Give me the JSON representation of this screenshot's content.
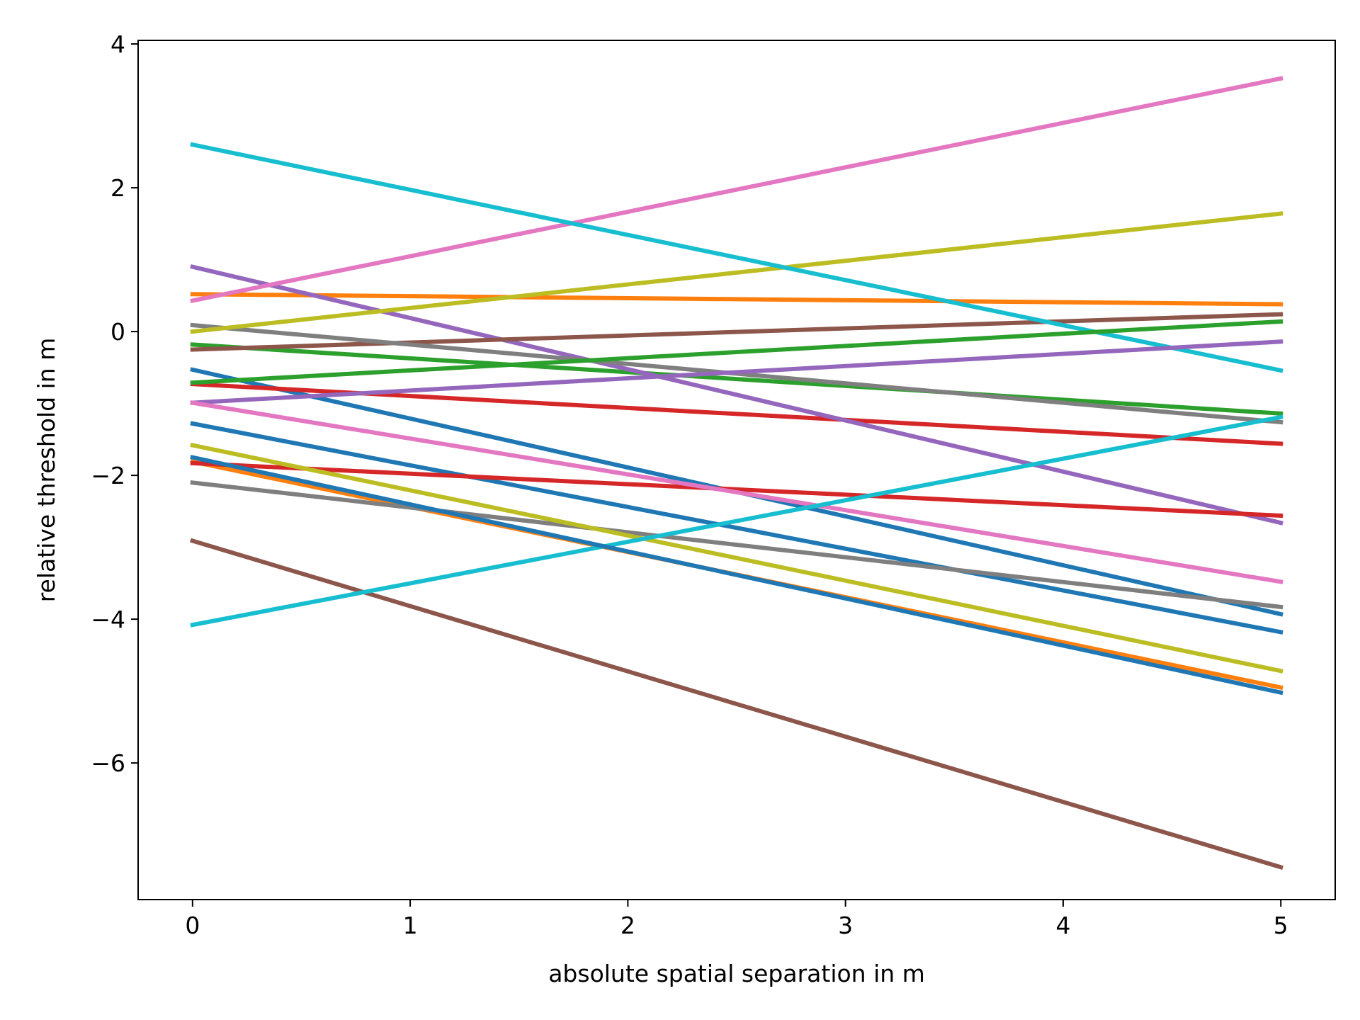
{
  "chart_data": {
    "type": "line",
    "title": "",
    "xlabel": "absolute spatial separation in m",
    "ylabel": "relative threshold in m",
    "xlim": [
      -0.25,
      5.25
    ],
    "ylim": [
      -7.9,
      4.05
    ],
    "xticks": [
      0,
      1,
      2,
      3,
      4,
      5
    ],
    "xtick_labels": [
      "0",
      "1",
      "2",
      "3",
      "4",
      "5"
    ],
    "yticks": [
      -6,
      -4,
      -2,
      0,
      2,
      4
    ],
    "ytick_labels": [
      "−6",
      "−4",
      "−2",
      "0",
      "2",
      "4"
    ],
    "grid": false,
    "legend": "none",
    "x": [
      0,
      5
    ],
    "series": [
      {
        "color": "#1f77b4",
        "values": [
          -0.53,
          -3.93
        ]
      },
      {
        "color": "#ff7f0e",
        "values": [
          0.52,
          0.38
        ]
      },
      {
        "color": "#2ca02c",
        "values": [
          -0.18,
          -1.14
        ]
      },
      {
        "color": "#d62728",
        "values": [
          -0.73,
          -1.56
        ]
      },
      {
        "color": "#9467bd",
        "values": [
          0.9,
          -2.66
        ]
      },
      {
        "color": "#8c564b",
        "values": [
          -0.25,
          0.24
        ]
      },
      {
        "color": "#e377c2",
        "values": [
          0.43,
          3.52
        ]
      },
      {
        "color": "#7f7f7f",
        "values": [
          0.09,
          -1.26
        ]
      },
      {
        "color": "#bcbd22",
        "values": [
          0.0,
          1.64
        ]
      },
      {
        "color": "#17becf",
        "values": [
          2.6,
          -0.54
        ]
      },
      {
        "color": "#1f77b4",
        "values": [
          -1.28,
          -4.18
        ]
      },
      {
        "color": "#ff7f0e",
        "values": [
          -1.81,
          -4.95
        ]
      },
      {
        "color": "#2ca02c",
        "values": [
          -0.71,
          0.14
        ]
      },
      {
        "color": "#d62728",
        "values": [
          -1.83,
          -2.56
        ]
      },
      {
        "color": "#9467bd",
        "values": [
          -0.99,
          -0.14
        ]
      },
      {
        "color": "#8c564b",
        "values": [
          -2.91,
          -7.45
        ]
      },
      {
        "color": "#e377c2",
        "values": [
          -0.99,
          -3.48
        ]
      },
      {
        "color": "#7f7f7f",
        "values": [
          -2.1,
          -3.83
        ]
      },
      {
        "color": "#bcbd22",
        "values": [
          -1.58,
          -4.72
        ]
      },
      {
        "color": "#17becf",
        "values": [
          -4.08,
          -1.19
        ]
      },
      {
        "color": "#1f77b4",
        "values": [
          -1.75,
          -5.02
        ]
      }
    ]
  }
}
